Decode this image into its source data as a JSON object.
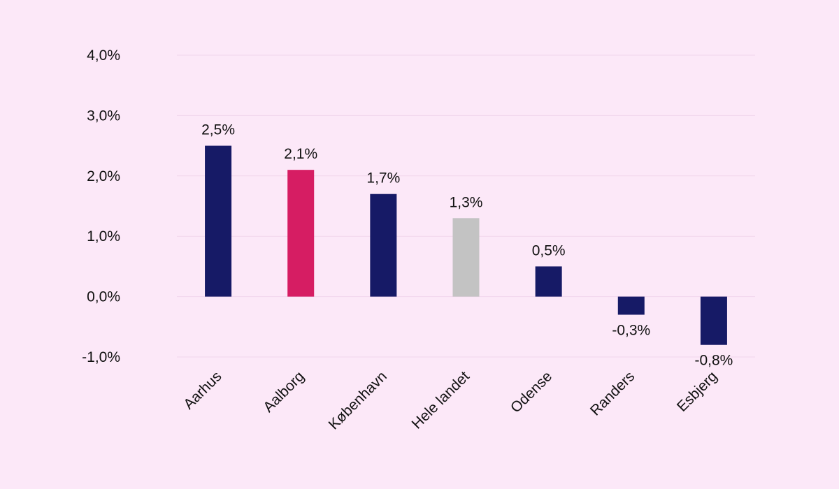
{
  "chart_data": {
    "type": "bar",
    "categories": [
      "Aarhus",
      "Aalborg",
      "København",
      "Hele landet",
      "Odense",
      "Randers",
      "Esbjerg"
    ],
    "values": [
      2.5,
      2.1,
      1.7,
      1.3,
      0.5,
      -0.3,
      -0.8
    ],
    "value_labels": [
      "2,5%",
      "2,1%",
      "1,7%",
      "1,3%",
      "0,5%",
      "-0,3%",
      "-0,8%"
    ],
    "bar_colors": [
      "#161a66",
      "#d61d63",
      "#161a66",
      "#c3c3c3",
      "#161a66",
      "#161a66",
      "#161a66"
    ],
    "yticks": [
      4.0,
      3.0,
      2.0,
      1.0,
      0.0,
      -1.0
    ],
    "ytick_labels": [
      "4,0%",
      "3,0%",
      "2,0%",
      "1,0%",
      "0,0%",
      "-1,0%"
    ],
    "ylim": [
      -1.0,
      4.0
    ],
    "grid": true,
    "legend": "none",
    "title": "",
    "xlabel": "",
    "ylabel": ""
  },
  "colors": {
    "background": "#fce8f8",
    "primary": "#161a66",
    "highlight": "#d61d63",
    "neutral": "#c3c3c3"
  }
}
